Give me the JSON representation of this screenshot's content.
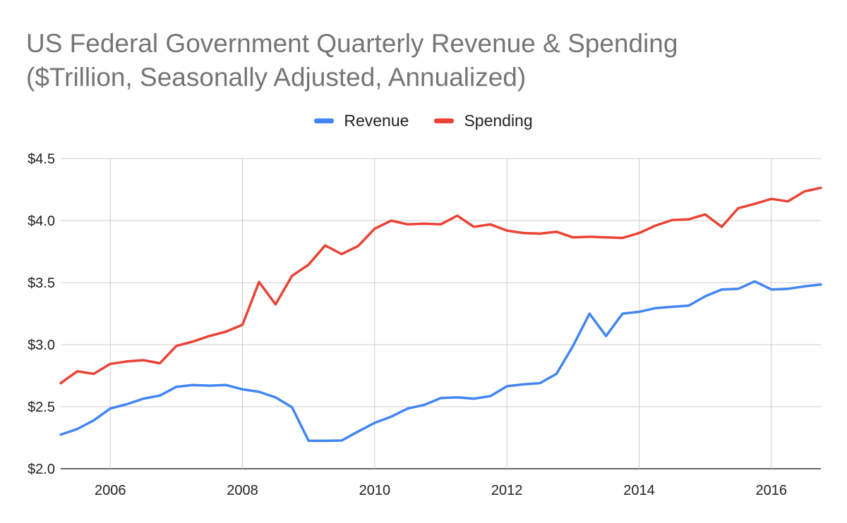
{
  "chart_data": {
    "type": "line",
    "title_line1": "US Federal Government Quarterly Revenue & Spending",
    "title_line2": "($Trillion, Seasonally Adjusted, Annualized)",
    "xlabel": "",
    "ylabel": "",
    "xlim": [
      2005.25,
      2016.75
    ],
    "ylim": [
      2.0,
      4.5
    ],
    "y_ticks": [
      {
        "value": 2.0,
        "label": "$2.0"
      },
      {
        "value": 2.5,
        "label": "$2.5"
      },
      {
        "value": 3.0,
        "label": "$3.0"
      },
      {
        "value": 3.5,
        "label": "$3.5"
      },
      {
        "value": 4.0,
        "label": "$4.0"
      },
      {
        "value": 4.5,
        "label": "$4.5"
      }
    ],
    "x_ticks": [
      {
        "value": 2006,
        "label": "2006"
      },
      {
        "value": 2008,
        "label": "2008"
      },
      {
        "value": 2010,
        "label": "2010"
      },
      {
        "value": 2012,
        "label": "2012"
      },
      {
        "value": 2014,
        "label": "2014"
      },
      {
        "value": 2016,
        "label": "2016"
      }
    ],
    "grid": true,
    "legend_position": "top-center",
    "x": [
      2005.25,
      2005.5,
      2005.75,
      2006.0,
      2006.25,
      2006.5,
      2006.75,
      2007.0,
      2007.25,
      2007.5,
      2007.75,
      2008.0,
      2008.25,
      2008.5,
      2008.75,
      2009.0,
      2009.25,
      2009.5,
      2009.75,
      2010.0,
      2010.25,
      2010.5,
      2010.75,
      2011.0,
      2011.25,
      2011.5,
      2011.75,
      2012.0,
      2012.25,
      2012.5,
      2012.75,
      2013.0,
      2013.25,
      2013.5,
      2013.75,
      2014.0,
      2014.25,
      2014.5,
      2014.75,
      2015.0,
      2015.25,
      2015.5,
      2015.75,
      2016.0,
      2016.25,
      2016.5,
      2016.75
    ],
    "series": [
      {
        "name": "Revenue",
        "color": "#4285F4",
        "values": [
          2.275,
          2.32,
          2.39,
          2.485,
          2.52,
          2.565,
          2.59,
          2.66,
          2.675,
          2.67,
          2.675,
          2.64,
          2.62,
          2.575,
          2.495,
          2.225,
          2.225,
          2.227,
          2.3,
          2.37,
          2.42,
          2.485,
          2.515,
          2.57,
          2.575,
          2.565,
          2.585,
          2.665,
          2.68,
          2.69,
          2.765,
          2.99,
          3.25,
          3.07,
          3.25,
          3.265,
          3.295,
          3.305,
          3.315,
          3.39,
          3.445,
          3.45,
          3.51,
          3.445,
          3.45,
          3.47,
          3.485
        ]
      },
      {
        "name": "Spending",
        "color": "#EA4335",
        "values": [
          2.69,
          2.785,
          2.765,
          2.845,
          2.865,
          2.875,
          2.85,
          2.99,
          3.025,
          3.07,
          3.105,
          3.16,
          3.505,
          3.325,
          3.555,
          3.645,
          3.8,
          3.73,
          3.795,
          3.935,
          4.0,
          3.97,
          3.975,
          3.97,
          4.04,
          3.95,
          3.97,
          3.92,
          3.9,
          3.895,
          3.91,
          3.865,
          3.87,
          3.865,
          3.86,
          3.9,
          3.96,
          4.005,
          4.01,
          4.05,
          3.95,
          4.1,
          4.135,
          4.175,
          4.155,
          4.235,
          4.265
        ]
      }
    ]
  }
}
